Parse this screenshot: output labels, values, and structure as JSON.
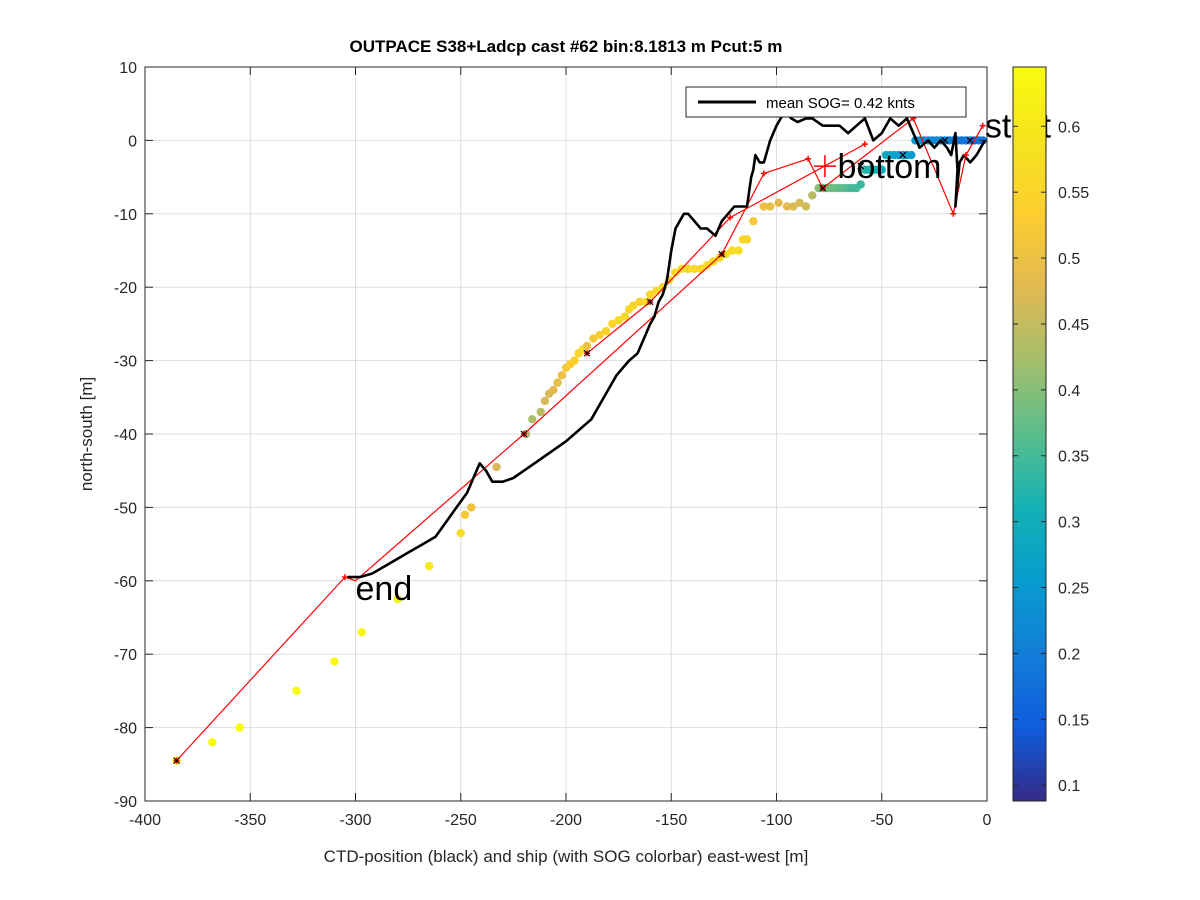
{
  "chart_data": {
    "type": "scatter",
    "title": "OUTPACE S38+Ladcp cast #62 bin:8.1813 m  Pcut:5 m",
    "xlabel": "CTD-position (black) and ship (with SOG colorbar) east-west [m]",
    "ylabel": "north-south [m]",
    "xlim": [
      -400,
      0
    ],
    "ylim": [
      -90,
      10
    ],
    "xticks": [
      -400,
      -350,
      -300,
      -250,
      -200,
      -150,
      -100,
      -50,
      0
    ],
    "yticks": [
      -90,
      -80,
      -70,
      -60,
      -50,
      -40,
      -30,
      -20,
      -10,
      0,
      10
    ],
    "xtick_labels": [
      "-400",
      "-350",
      "-300",
      "-250",
      "-200",
      "-150",
      "-100",
      "-50",
      "0"
    ],
    "ytick_labels": [
      "-90",
      "-80",
      "-70",
      "-60",
      "-50",
      "-40",
      "-30",
      "-20",
      "-10",
      "0",
      "10"
    ],
    "grid": true,
    "legend": {
      "placement": "top-right",
      "entries": [
        {
          "label": "mean SOG=  0.42 knts",
          "color": "#000000"
        }
      ]
    },
    "colorbar": {
      "label": "",
      "range": [
        0.088,
        0.645
      ],
      "ticks": [
        0.1,
        0.15,
        0.2,
        0.25,
        0.3,
        0.35,
        0.4,
        0.45,
        0.5,
        0.55,
        0.6
      ],
      "tick_labels": [
        "0.1",
        "0.15",
        "0.2",
        "0.25",
        "0.3",
        "0.35",
        "0.4",
        "0.45",
        "0.5",
        "0.55",
        "0.6"
      ],
      "colormap": "parula"
    },
    "series": [
      {
        "name": "mean SOG=  0.42 knts",
        "kind": "line",
        "color": "#000000",
        "x": [
          -1,
          -5,
          -8,
          -11,
          -13,
          -14,
          -15,
          -14,
          -15,
          -17,
          -19,
          -22,
          -25,
          -28,
          -32,
          -35,
          -38,
          -42,
          -46,
          -50,
          -54,
          -58,
          -62,
          -66,
          -70,
          -73,
          -78,
          -83,
          -86,
          -90,
          -93,
          -96,
          -100,
          -103,
          -106,
          -108,
          -110,
          -111,
          -112,
          -114,
          -117,
          -120,
          -123,
          -126,
          -129,
          -133,
          -136,
          -139,
          -142,
          -144,
          -146,
          -148,
          -150,
          -152,
          -154,
          -156,
          -158,
          -160,
          -163,
          -166,
          -170,
          -173,
          -176,
          -180,
          -184,
          -188,
          -192,
          -196,
          -200,
          -205,
          -210,
          -215,
          -220,
          -225,
          -230,
          -235,
          -238,
          -241,
          -244,
          -247,
          -252,
          -257,
          -262,
          -268,
          -274,
          -280,
          -286,
          -292,
          -298,
          -302,
          -304
        ],
        "y": [
          0,
          -2,
          -3,
          -2,
          -3,
          -6,
          -9,
          -4,
          1,
          -2,
          -1,
          0,
          -1,
          0,
          -1,
          1,
          3,
          2,
          3,
          1,
          0,
          3,
          2,
          1,
          2,
          2,
          2,
          3,
          3,
          2.5,
          3,
          4,
          2,
          0,
          -3,
          -3,
          -2,
          -4,
          -5,
          -9,
          -9,
          -9,
          -10,
          -11,
          -13,
          -12,
          -12,
          -11,
          -10,
          -10,
          -11,
          -12,
          -15,
          -19,
          -21,
          -22,
          -24,
          -25,
          -27,
          -29,
          -30,
          -31,
          -32,
          -34,
          -36,
          -38,
          -39,
          -40,
          -41,
          -42,
          -43,
          -44,
          -45,
          -46,
          -46.5,
          -46.5,
          -45,
          -44,
          -46,
          -48,
          -50,
          -52,
          -54,
          -55,
          -56,
          -57,
          -58,
          -59,
          -59.5,
          -59.5,
          -59.5
        ]
      },
      {
        "name": "",
        "kind": "line",
        "color": "#ff0000",
        "x": [
          -385,
          -305,
          -300,
          -220,
          -126,
          -106,
          -85,
          -78,
          -35,
          -16,
          -10,
          -2
        ],
        "y": [
          -84.5,
          -59.5,
          -60,
          -40,
          -15.5,
          -4.5,
          -2.5,
          -6.5,
          3,
          -10,
          -2,
          2
        ]
      },
      {
        "name": "",
        "kind": "line",
        "color": "#ff0000",
        "x": [
          -190,
          -160,
          -122,
          -58
        ],
        "y": [
          -29,
          -22,
          -10.5,
          -0.5
        ]
      },
      {
        "name": "",
        "kind": "colored_points",
        "x": [
          -385,
          -368,
          -355,
          -328,
          -310,
          -297,
          -280,
          -265,
          -250,
          -248,
          -245,
          -233,
          -219,
          -216,
          -212,
          -210,
          -208,
          -206,
          -204,
          -202,
          -200,
          -198,
          -196,
          -194,
          -192,
          -190,
          -187,
          -184,
          -181,
          -178,
          -175,
          -172,
          -170,
          -168,
          -165,
          -162,
          -160,
          -157,
          -154,
          -151,
          -148,
          -145,
          -142,
          -139,
          -136,
          -133,
          -130,
          -127,
          -124,
          -121,
          -118,
          -116,
          -114,
          -111,
          -106,
          -103,
          -99,
          -95,
          -92,
          -89,
          -86,
          -83,
          -80,
          -78,
          -76,
          -74,
          -72,
          -70,
          -68,
          -66,
          -64,
          -62,
          -60,
          -58,
          -56,
          -54,
          -52,
          -50,
          -48,
          -46,
          -44,
          -42,
          -40,
          -38,
          -36,
          -34,
          -32,
          -30,
          -28,
          -26,
          -24,
          -22,
          -20,
          -18,
          -16,
          -14,
          -12,
          -10,
          -8,
          -6,
          -4,
          -2
        ],
        "y": [
          -84.5,
          -82,
          -80,
          -75,
          -71,
          -67,
          -62.5,
          -58,
          -53.5,
          -51,
          -50,
          -44.5,
          -40,
          -38,
          -37,
          -35.5,
          -34.5,
          -34,
          -33,
          -32,
          -31,
          -30.5,
          -30,
          -29,
          -28.5,
          -28,
          -27,
          -26.5,
          -26,
          -25,
          -24.5,
          -24,
          -23,
          -22.5,
          -22,
          -22,
          -21,
          -20.5,
          -20,
          -19,
          -18,
          -17.5,
          -17.5,
          -17.5,
          -17.5,
          -17,
          -16.5,
          -16,
          -15.5,
          -15,
          -15,
          -13.5,
          -13.5,
          -11,
          -9,
          -9,
          -8.5,
          -9,
          -9,
          -8.5,
          -9,
          -7.5,
          -6.5,
          -6.5,
          -6.5,
          -6.5,
          -6.5,
          -6.5,
          -6.5,
          -6.5,
          -6.5,
          -6.5,
          -6,
          -4,
          -4,
          -4,
          -4,
          -4,
          -2,
          -2,
          -2,
          -2,
          -2,
          -2,
          -2,
          0,
          0,
          0,
          0,
          0,
          0,
          0,
          0,
          0,
          0,
          0,
          0,
          0,
          0,
          0,
          0,
          0
        ],
        "c": [
          0.64,
          0.64,
          0.64,
          0.64,
          0.64,
          0.63,
          0.62,
          0.6,
          0.57,
          0.52,
          0.5,
          0.47,
          0.42,
          0.43,
          0.44,
          0.47,
          0.47,
          0.48,
          0.49,
          0.5,
          0.52,
          0.53,
          0.54,
          0.55,
          0.56,
          0.5,
          0.52,
          0.53,
          0.55,
          0.55,
          0.56,
          0.56,
          0.55,
          0.55,
          0.55,
          0.56,
          0.55,
          0.56,
          0.56,
          0.57,
          0.57,
          0.57,
          0.56,
          0.56,
          0.56,
          0.57,
          0.57,
          0.57,
          0.57,
          0.57,
          0.57,
          0.56,
          0.55,
          0.52,
          0.5,
          0.49,
          0.48,
          0.48,
          0.47,
          0.47,
          0.46,
          0.44,
          0.4,
          0.39,
          0.39,
          0.38,
          0.38,
          0.37,
          0.37,
          0.36,
          0.35,
          0.35,
          0.34,
          0.33,
          0.32,
          0.31,
          0.31,
          0.3,
          0.29,
          0.28,
          0.27,
          0.26,
          0.26,
          0.25,
          0.25,
          0.24,
          0.24,
          0.23,
          0.23,
          0.22,
          0.22,
          0.22,
          0.21,
          0.21,
          0.2,
          0.2,
          0.19,
          0.19,
          0.19,
          0.18,
          0.18,
          0.18
        ]
      }
    ],
    "markers": {
      "red": {
        "x": [
          -385,
          -305,
          -220,
          -190,
          -160,
          -126,
          -122,
          -106,
          -85,
          -78,
          -58,
          -35,
          -16,
          -10,
          -2
        ],
        "y": [
          -84.5,
          -59.5,
          -40,
          -29,
          -22,
          -15.5,
          -10.5,
          -4.5,
          -2.5,
          -6.5,
          -0.5,
          3,
          -10,
          -2,
          2
        ]
      },
      "black": {
        "x": [
          -385,
          -220,
          -190,
          -160,
          -126,
          -78,
          -60,
          -40,
          -20,
          -8
        ],
        "y": [
          -84.5,
          -40,
          -29,
          -22,
          -15.5,
          -6.5,
          -3.5,
          -2,
          0,
          0
        ]
      },
      "bottom_cross": {
        "x": -77,
        "y": -3.5
      }
    },
    "annotations": [
      {
        "text": "start",
        "x": -1,
        "y": 2
      },
      {
        "text": "bottom",
        "x": -71,
        "y": -3.5
      },
      {
        "text": "end",
        "x": -300,
        "y": -61
      }
    ]
  }
}
